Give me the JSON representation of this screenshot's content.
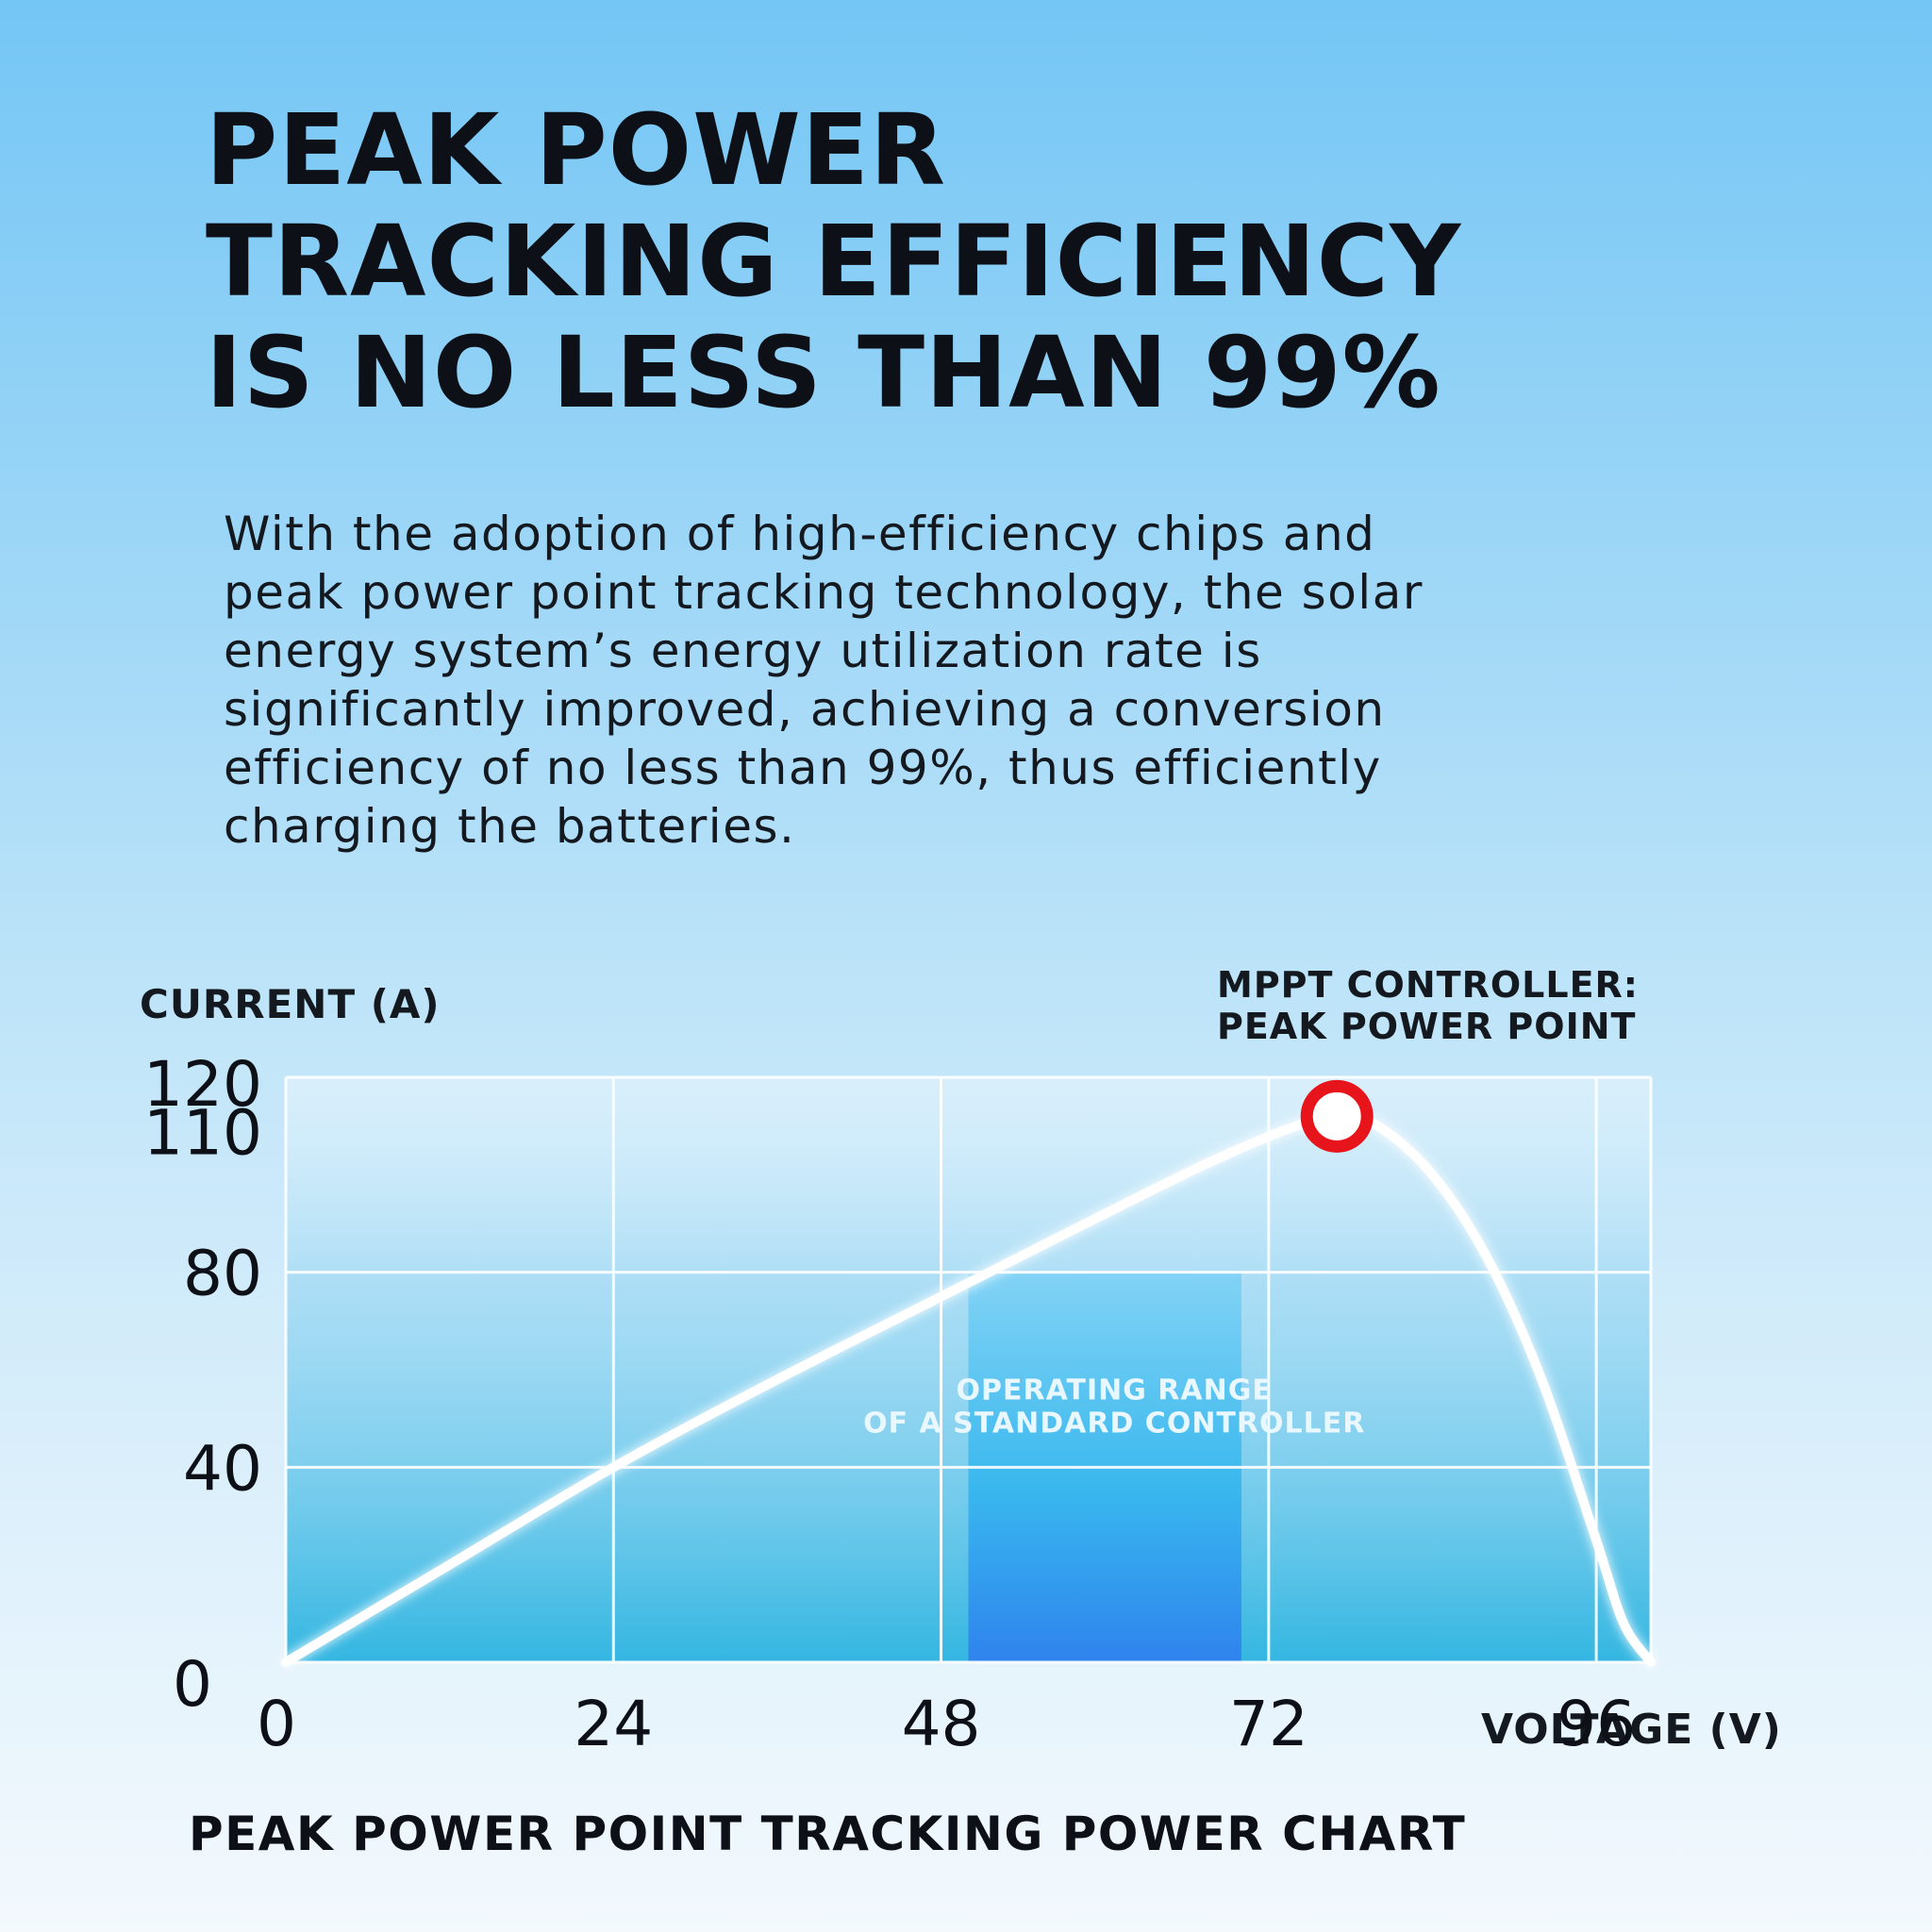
{
  "headline": {
    "lines": [
      "PEAK POWER",
      "TRACKING EFFICIENCY",
      "IS NO LESS THAN 99%"
    ]
  },
  "body": {
    "lines": [
      "With the adoption of high-efficiency chips and",
      "peak power point tracking technology, the solar",
      "energy system’s energy utilization rate is",
      "significantly improved, achieving a conversion",
      "efficiency of no less than 99%, thus efficiently",
      "charging the batteries."
    ]
  },
  "chart_data": {
    "type": "line",
    "title": "PEAK POWER POINT TRACKING POWER CHART",
    "ylabel": "CURRENT (A)",
    "xlabel": "VOLTAGE (V)",
    "xlim": [
      0,
      100
    ],
    "ylim": [
      0,
      120
    ],
    "x_ticks": [
      "0",
      "24",
      "48",
      "72",
      "96"
    ],
    "x_tick_values": [
      0,
      24,
      48,
      72,
      96
    ],
    "y_ticks": [
      "0",
      "40",
      "80",
      "110",
      "120"
    ],
    "y_tick_values": [
      0,
      40,
      80,
      110,
      120
    ],
    "grid": true,
    "series": [
      {
        "x": [
          0,
          12,
          24,
          36,
          48,
          60,
          68,
          74,
          77,
          80,
          84,
          88,
          92,
          96,
          98,
          100
        ],
        "y": [
          0,
          20,
          40,
          58,
          75,
          92,
          103,
          110,
          112,
          110,
          100,
          83,
          58,
          25,
          8,
          0
        ]
      }
    ],
    "peak_point": {
      "x": 77,
      "y": 112
    },
    "peak_label": [
      "MPPT CONTROLLER:",
      "PEAK POWER POINT"
    ],
    "standard_range": {
      "x": [
        50,
        70
      ],
      "y_top": 80
    },
    "standard_range_label": [
      "OPERATING RANGE",
      "OF A STANDARD CONTROLLER"
    ],
    "colors": {
      "curve": "#ffffff",
      "peak_marker": "#e8141b",
      "plot_fill": "#2ab3e0",
      "range_fill": "#2f86f0",
      "grid": "#ffffff"
    }
  }
}
